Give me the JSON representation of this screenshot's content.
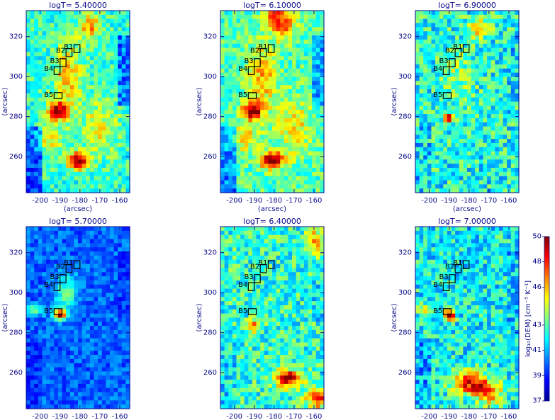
{
  "chart_data": {
    "type": "heatmap",
    "x_label": "(arcsec)",
    "y_label": "(arcsec)",
    "x_range": [
      -207,
      -155
    ],
    "y_range": [
      242,
      333
    ],
    "x_ticks": [
      -200,
      -190,
      -180,
      -170,
      -160
    ],
    "y_ticks": [
      260,
      280,
      300,
      320
    ],
    "colorscale": [
      "#00008f",
      "#0000ff",
      "#0080ff",
      "#00ffff",
      "#80ff80",
      "#ffff00",
      "#ff8000",
      "#ff0000",
      "#800000"
    ],
    "colorbar": {
      "label": "log₁₀(DEM) [cm⁻⁵ K⁻¹]",
      "range": [
        37,
        50
      ],
      "ticks": [
        37,
        39,
        41,
        43,
        46,
        48,
        50
      ]
    },
    "boxes": [
      {
        "label": "B1",
        "x": [
          -183,
          -180
        ],
        "y": [
          312,
          316
        ]
      },
      {
        "label": "B2",
        "x": [
          -187,
          -184
        ],
        "y": [
          310,
          314
        ]
      },
      {
        "label": "B3",
        "x": [
          -190,
          -187
        ],
        "y": [
          305,
          309
        ]
      },
      {
        "label": "B4",
        "x": [
          -193,
          -190
        ],
        "y": [
          301,
          305
        ]
      },
      {
        "label": "B5",
        "x": [
          -193,
          -189
        ],
        "y": [
          289,
          292
        ]
      }
    ],
    "panels": [
      {
        "title": "logT= 5.40000",
        "show_xlabel": true
      },
      {
        "title": "logT= 6.10000",
        "show_xlabel": true
      },
      {
        "title": "logT= 6.90000",
        "show_xlabel": true
      },
      {
        "title": "logT= 5.70000",
        "show_xlabel": false
      },
      {
        "title": "logT= 6.40000",
        "show_xlabel": false
      },
      {
        "title": "logT= 7.00000",
        "show_xlabel": false
      }
    ]
  }
}
